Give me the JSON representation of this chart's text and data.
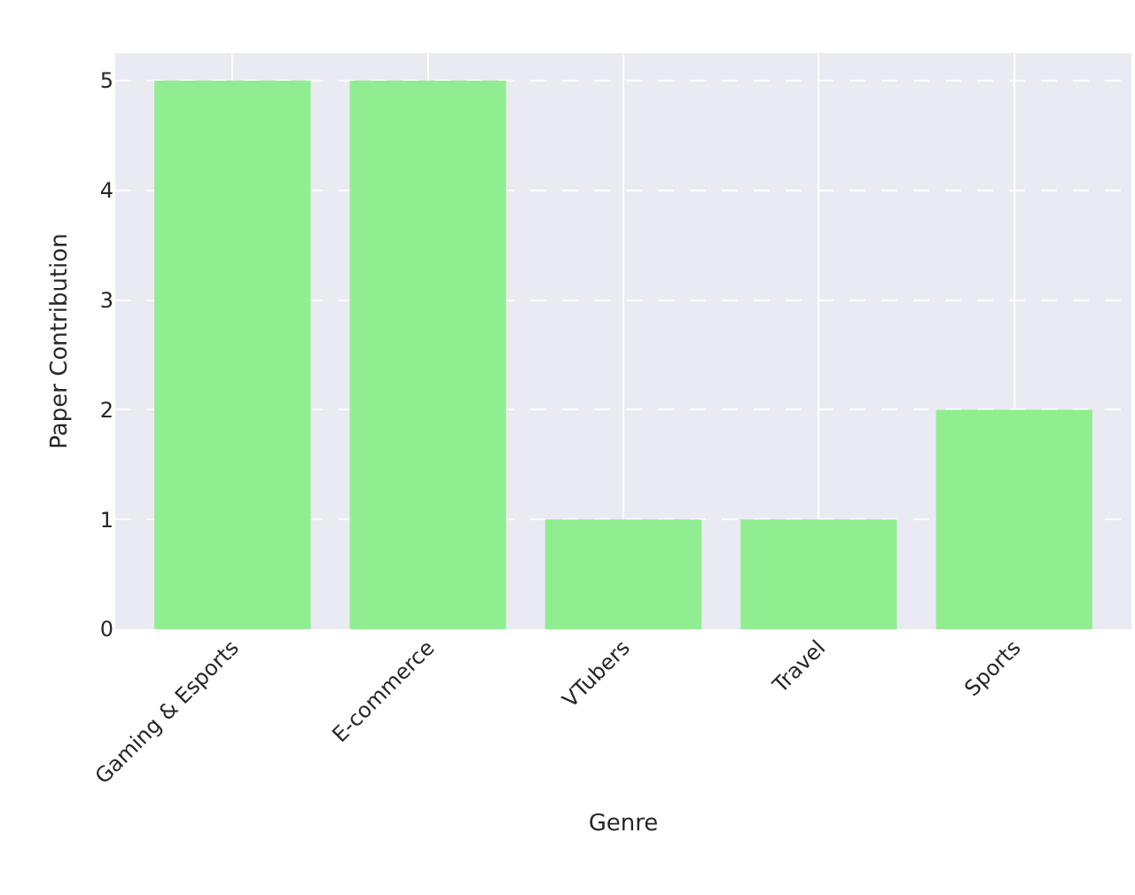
{
  "chart_data": {
    "type": "bar",
    "xlabel": "Genre",
    "ylabel": "Paper Contribution",
    "categories": [
      "Gaming & Esports",
      "E-commerce",
      "VTubers",
      "Travel",
      "Sports"
    ],
    "values": [
      5,
      5,
      1,
      1,
      2
    ],
    "color": "#90ee90",
    "ylim": [
      0,
      5.25
    ],
    "yticks": [
      0,
      1,
      2,
      3,
      4,
      5
    ],
    "grid": true
  }
}
